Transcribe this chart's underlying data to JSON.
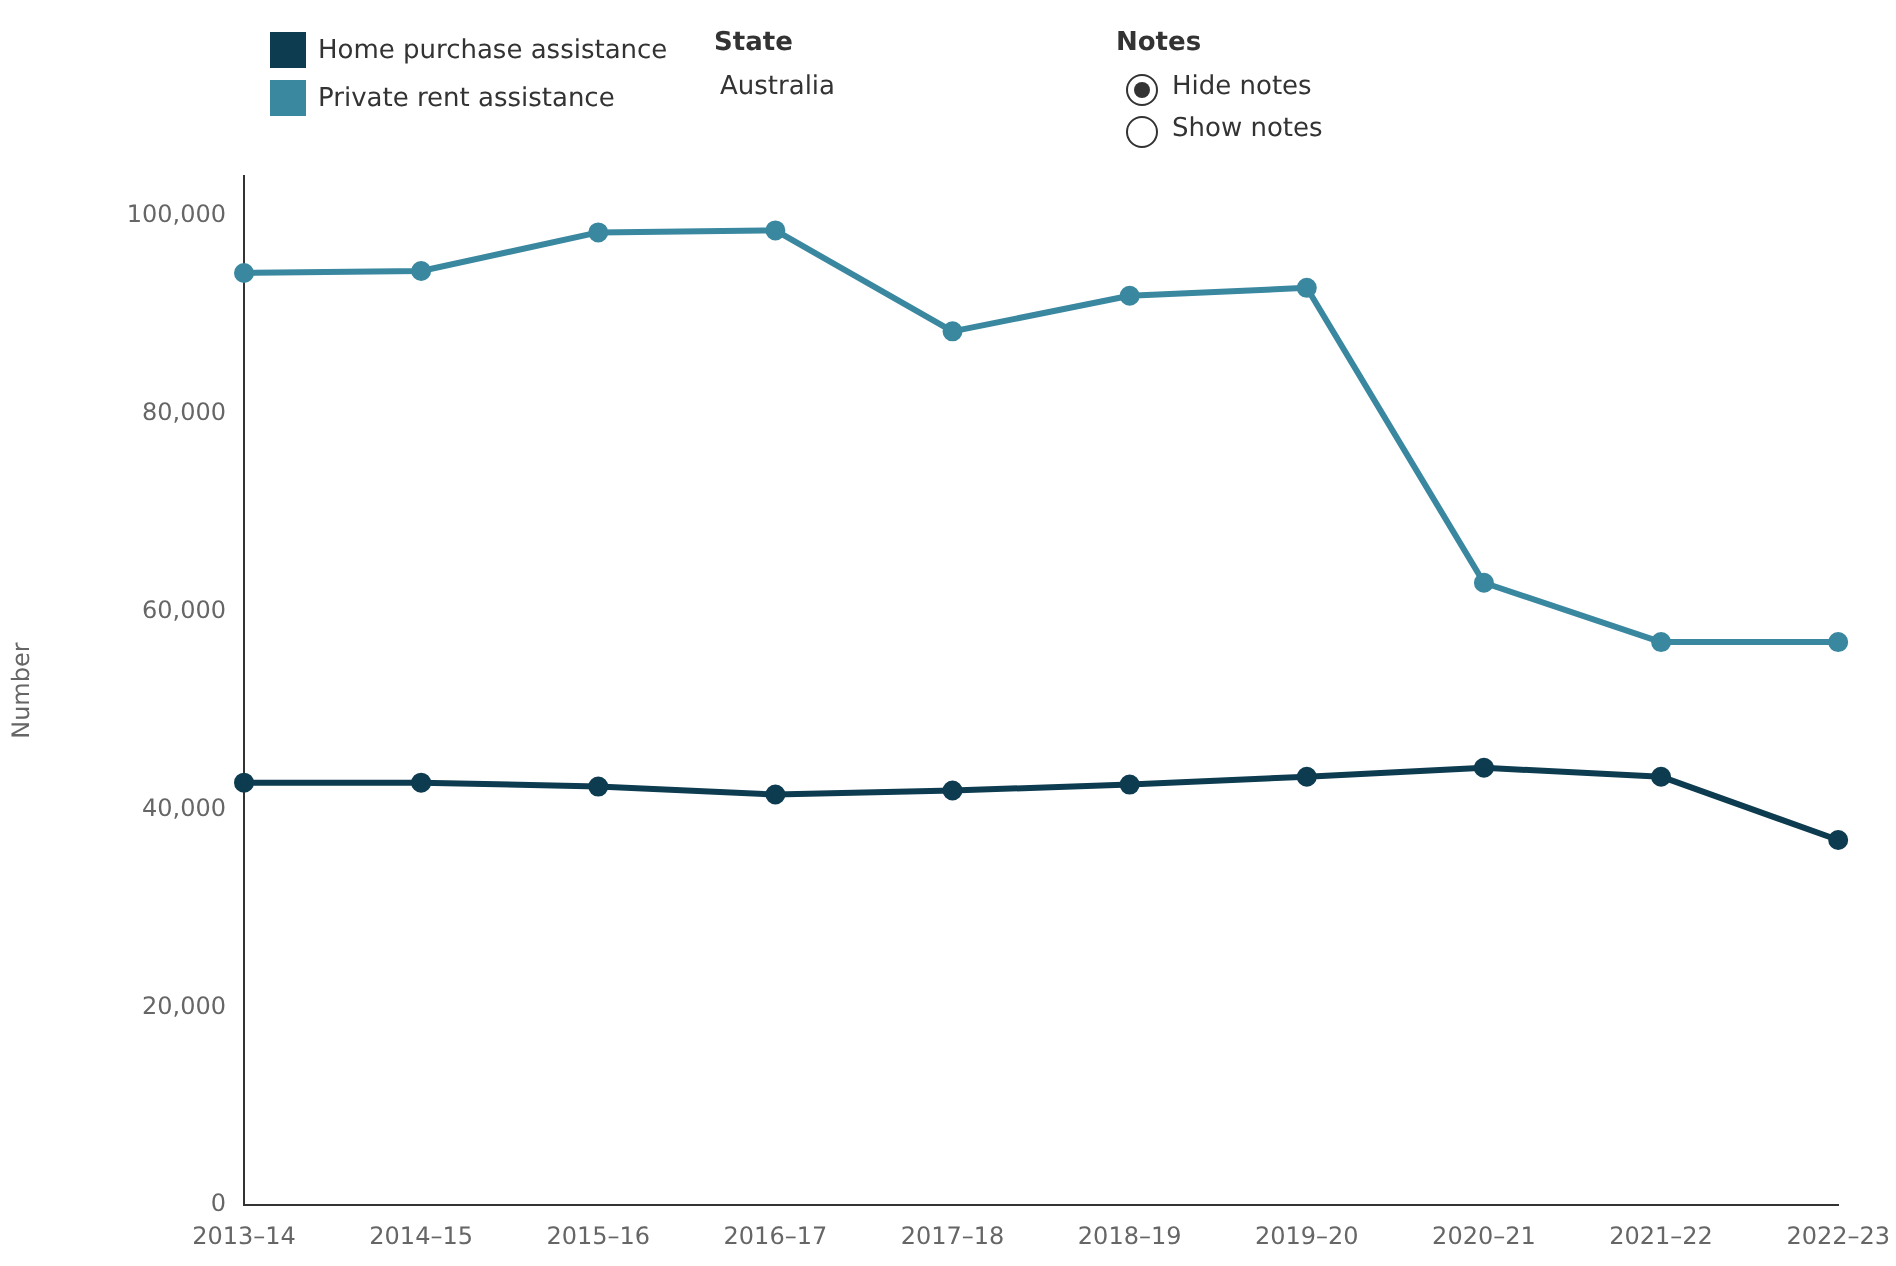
{
  "chart_data": {
    "type": "line",
    "ylabel": "Number",
    "categories": [
      "2013–14",
      "2014–15",
      "2015–16",
      "2016–17",
      "2017–18",
      "2018–19",
      "2019–20",
      "2020–21",
      "2021–22",
      "2022–23"
    ],
    "series": [
      {
        "name": "Home purchase assistance",
        "color": "#0d3b4f",
        "values": [
          42700,
          42700,
          42300,
          41500,
          41900,
          42500,
          43300,
          44200,
          43300,
          36900
        ]
      },
      {
        "name": "Private rent assistance",
        "color": "#3a87a0",
        "values": [
          94200,
          94400,
          98300,
          98500,
          88300,
          91900,
          92700,
          62900,
          56900,
          56900
        ]
      }
    ],
    "ylim": [
      0,
      104000
    ],
    "yticks": [
      0,
      {
        "value": 20000,
        "label": "20,000"
      },
      {
        "value": 40000,
        "label": "40,000"
      },
      {
        "value": 60000,
        "label": "60,000"
      },
      {
        "value": 80000,
        "label": "80,000"
      },
      {
        "value": 100000,
        "label": "100,000"
      }
    ],
    "grid": false,
    "legend": "top left",
    "marker": "circle",
    "line_style": "solid",
    "annotations": [
      "State",
      "Australia",
      "Notes",
      "Hide notes",
      "Show notes"
    ]
  }
}
